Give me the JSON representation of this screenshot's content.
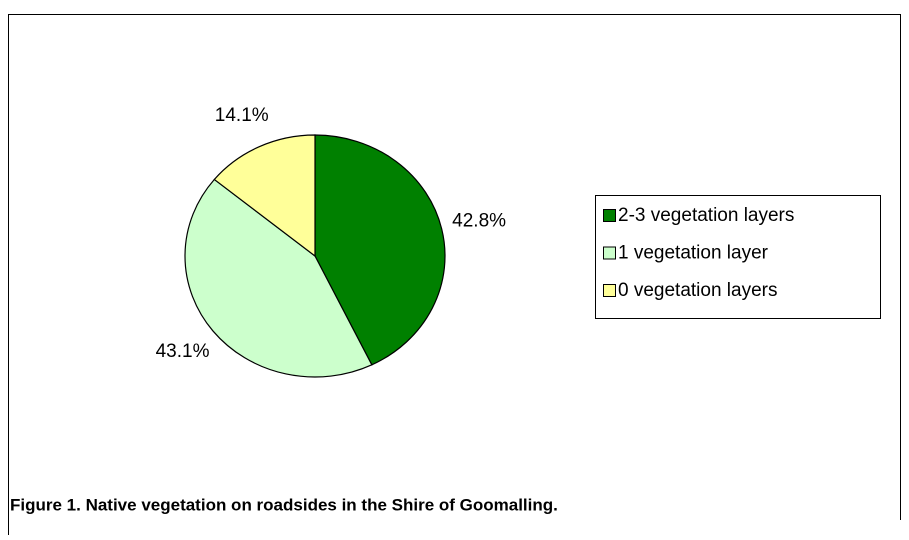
{
  "chart_data": {
    "type": "pie",
    "categories": [
      "2-3 vegetation layers",
      "1 vegetation layer",
      "0 vegetation layers"
    ],
    "values": [
      42.8,
      43.1,
      14.1
    ],
    "value_labels": [
      "42.8%",
      "43.1%",
      "14.1%"
    ],
    "colors": [
      "#008000",
      "#ccffcc",
      "#ffff99"
    ],
    "legend": "right",
    "caption": "Figure 1. Native vegetation on roadsides in the Shire of Goomalling."
  }
}
